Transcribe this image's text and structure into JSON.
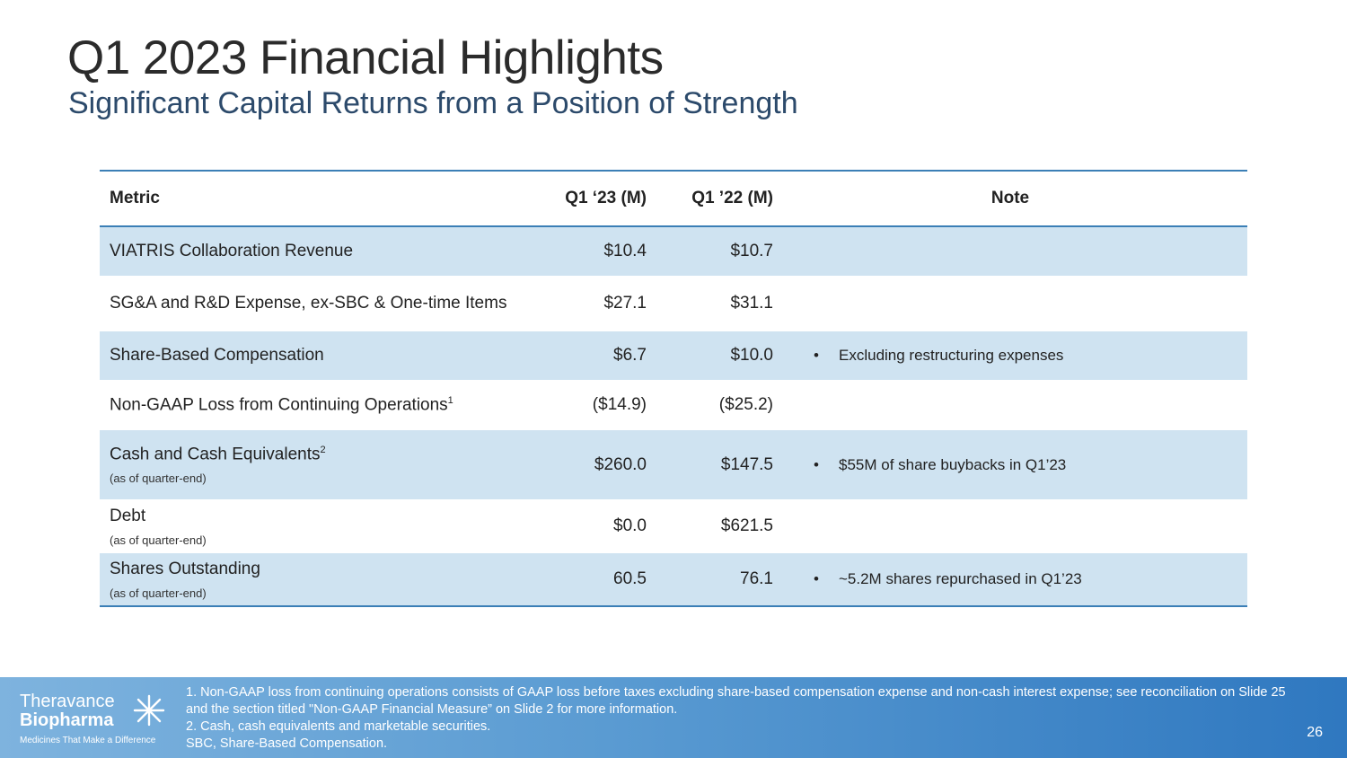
{
  "slide": {
    "title": "Q1 2023 Financial Highlights",
    "subtitle": "Significant Capital Returns from a Position of Strength",
    "page_number": "26"
  },
  "table": {
    "headers": {
      "metric": "Metric",
      "q1_23": "Q1 ‘23 (M)",
      "q1_22": "Q1 ’22 (M)",
      "note": "Note"
    },
    "rows": [
      {
        "metric": "VIATRIS Collaboration Revenue",
        "sup": "",
        "sublabel": "",
        "q1_23": "$10.4",
        "q1_22": "$10.7",
        "note": ""
      },
      {
        "metric": "SG&A and R&D Expense, ex-SBC & One-time Items",
        "sup": "",
        "sublabel": "",
        "q1_23": "$27.1",
        "q1_22": "$31.1",
        "note": ""
      },
      {
        "metric": "Share-Based Compensation",
        "sup": "",
        "sublabel": "",
        "q1_23": "$6.7",
        "q1_22": "$10.0",
        "note": "Excluding restructuring expenses"
      },
      {
        "metric": "Non-GAAP Loss from Continuing Operations",
        "sup": "1",
        "sublabel": "",
        "q1_23": "($14.9)",
        "q1_22": "($25.2)",
        "note": ""
      },
      {
        "metric": "Cash and Cash Equivalents",
        "sup": "2",
        "sublabel": "(as of quarter-end)",
        "q1_23": "$260.0",
        "q1_22": "$147.5",
        "note": "$55M of share buybacks in Q1’23"
      },
      {
        "metric": "Debt",
        "sup": "",
        "sublabel": "(as of quarter-end)",
        "q1_23": "$0.0",
        "q1_22": "$621.5",
        "note": ""
      },
      {
        "metric": "Shares Outstanding",
        "sup": "",
        "sublabel": "(as of quarter-end)",
        "q1_23": "60.5",
        "q1_22": "76.1",
        "note": "~5.2M shares repurchased in Q1’23"
      }
    ]
  },
  "footer": {
    "logo": {
      "line1": "Theravance",
      "line2": "Biopharma",
      "tagline": "Medicines That Make a Difference"
    },
    "footnotes": [
      "1. Non-GAAP loss from continuing operations consists of GAAP loss before taxes excluding share-based compensation expense and non-cash interest expense; see reconciliation on Slide 25  and the section titled \"Non-GAAP Financial Measure” on Slide 2 for more information.",
      "2. Cash, cash equivalents and marketable securities.",
      "SBC, Share-Based Compensation."
    ]
  },
  "colors": {
    "row_shade": "#cfe3f1",
    "rule": "#3b7fb6",
    "subtitle": "#2c4a6b",
    "footer_start": "#7eb3de",
    "footer_end": "#2f78c0"
  }
}
